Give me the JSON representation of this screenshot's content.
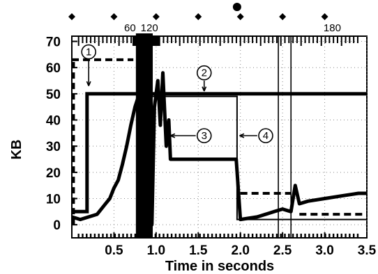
{
  "chart_data": {
    "type": "line",
    "title": "",
    "xlabel": "Time in seconds",
    "ylabel": "KB",
    "xlim": [
      0,
      3.5
    ],
    "ylim": [
      -5,
      72
    ],
    "x_ticks": [
      "0.5",
      "1.0",
      "1.5",
      "2.0",
      "2.5",
      "3.0",
      "3.5"
    ],
    "x_tick_values": [
      0.5,
      1.0,
      1.5,
      2.0,
      2.5,
      3.0,
      3.5
    ],
    "y_ticks": [
      "0",
      "10",
      "20",
      "30",
      "40",
      "50",
      "60",
      "70"
    ],
    "y_tick_values": [
      0,
      10,
      20,
      30,
      40,
      50,
      60,
      70
    ],
    "grid": "dotted",
    "top_labels": [
      {
        "text": "60",
        "x": 0.69
      },
      {
        "text": "120",
        "x": 0.92
      },
      {
        "text": "180",
        "x": 3.09
      }
    ],
    "callouts": [
      {
        "number": "1",
        "x": 0.2,
        "y": 66
      },
      {
        "number": "2",
        "x": 1.57,
        "y": 58
      },
      {
        "number": "3",
        "x": 1.57,
        "y": 34
      },
      {
        "number": "4",
        "x": 2.3,
        "y": 34
      }
    ],
    "top_diamonds_x": [
      0.0,
      0.5,
      1.0,
      1.5,
      2.0,
      2.5,
      3.0
    ],
    "top_dot_x": 1.96,
    "vertical_markers_x": [
      2.45,
      2.6
    ],
    "series": [
      {
        "style": "thick",
        "x": [
          0,
          0.18,
          0.18,
          0.8,
          0.8,
          3.5
        ],
        "y": [
          5,
          5,
          50,
          50,
          50,
          50
        ]
      },
      {
        "style": "thin",
        "x": [
          0,
          0.18,
          0.18,
          0.8,
          0.8,
          1.96,
          1.96,
          3.5
        ],
        "y": [
          5,
          5,
          50,
          50,
          49,
          49,
          2,
          2
        ]
      },
      {
        "style": "dashed",
        "x": [
          0,
          0.4,
          0.4,
          0.73
        ],
        "y": [
          63,
          63,
          63,
          63
        ]
      },
      {
        "style": "dashed",
        "x": [
          2.0,
          2.6
        ],
        "y": [
          12,
          12
        ]
      },
      {
        "style": "dashed",
        "x": [
          2.7,
          3.5
        ],
        "y": [
          4,
          4
        ]
      },
      {
        "style": "packets",
        "x": [
          0,
          0.1,
          0.2,
          0.3,
          0.4,
          0.45,
          0.5,
          0.55,
          0.6,
          0.65,
          0.7,
          0.75,
          0.8,
          0.85,
          0.9,
          0.95,
          0.98,
          1.02,
          1.05,
          1.08,
          1.12,
          1.15,
          1.17,
          1.2,
          1.95,
          2.0,
          2.2,
          2.4,
          2.5,
          2.6,
          2.65,
          2.7,
          2.8,
          3.0,
          3.2,
          3.4,
          3.5
        ],
        "y": [
          3,
          2,
          3,
          4,
          8,
          10,
          14,
          17,
          23,
          30,
          38,
          45,
          50,
          55,
          62,
          0,
          45,
          55,
          38,
          58,
          30,
          40,
          25,
          25,
          25,
          2,
          3,
          5,
          6,
          5,
          15,
          8,
          9,
          10,
          11,
          12,
          12
        ]
      }
    ]
  }
}
